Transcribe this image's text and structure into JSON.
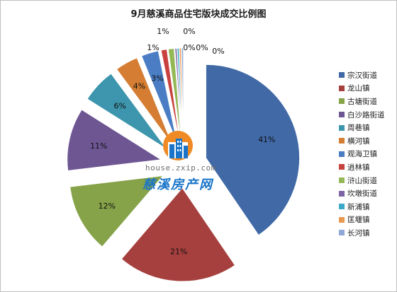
{
  "chart_data": {
    "type": "pie",
    "title": "9月慈溪商品住宅版块成交比例图",
    "categories": [
      "宗汉街道",
      "龙山镇",
      "古塘街道",
      "白沙路街道",
      "周巷镇",
      "横河镇",
      "观海卫镇",
      "逍林镇",
      "浒山街道",
      "坎墩街道",
      "新浦镇",
      "匡堰镇",
      "长河镇"
    ],
    "values": [
      41,
      21,
      12,
      11,
      6,
      4,
      3,
      1,
      1,
      0,
      0,
      0,
      0
    ],
    "labels": [
      "41%",
      "21%",
      "12%",
      "11%",
      "6%",
      "4%",
      "3%",
      "1%",
      "1%",
      "0%",
      "0%",
      "0%",
      "0%"
    ],
    "colors": [
      "#4069a6",
      "#a6403e",
      "#86a349",
      "#6e5693",
      "#3d96ad",
      "#d57e33",
      "#4a7dc4",
      "#c8413f",
      "#95b857",
      "#7d63a6",
      "#3ba9c8",
      "#ea9a4f",
      "#8fa9d6"
    ],
    "exploded": true,
    "legend_position": "right"
  },
  "watermark": {
    "url": "house.zxip.com",
    "name": "慈溪房产网",
    "icon": "building-icon"
  }
}
